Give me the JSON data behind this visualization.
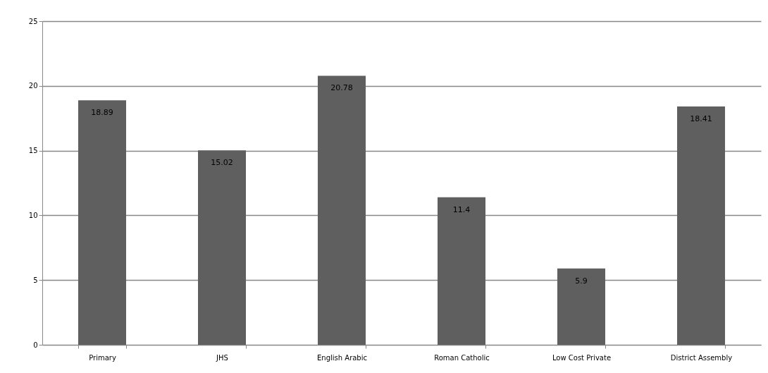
{
  "chart_data": {
    "type": "bar",
    "categories": [
      "Primary",
      "JHS",
      "English Arabic",
      "Roman Catholic",
      "Low Cost Private",
      "District Assembly"
    ],
    "values": [
      18.89,
      15.02,
      20.78,
      11.4,
      5.9,
      18.41
    ],
    "color": "#5f5f5f",
    "ylim": [
      0,
      25
    ],
    "yticks": [
      0,
      5,
      10,
      15,
      20,
      25
    ],
    "grid": true,
    "data_labels": true
  }
}
